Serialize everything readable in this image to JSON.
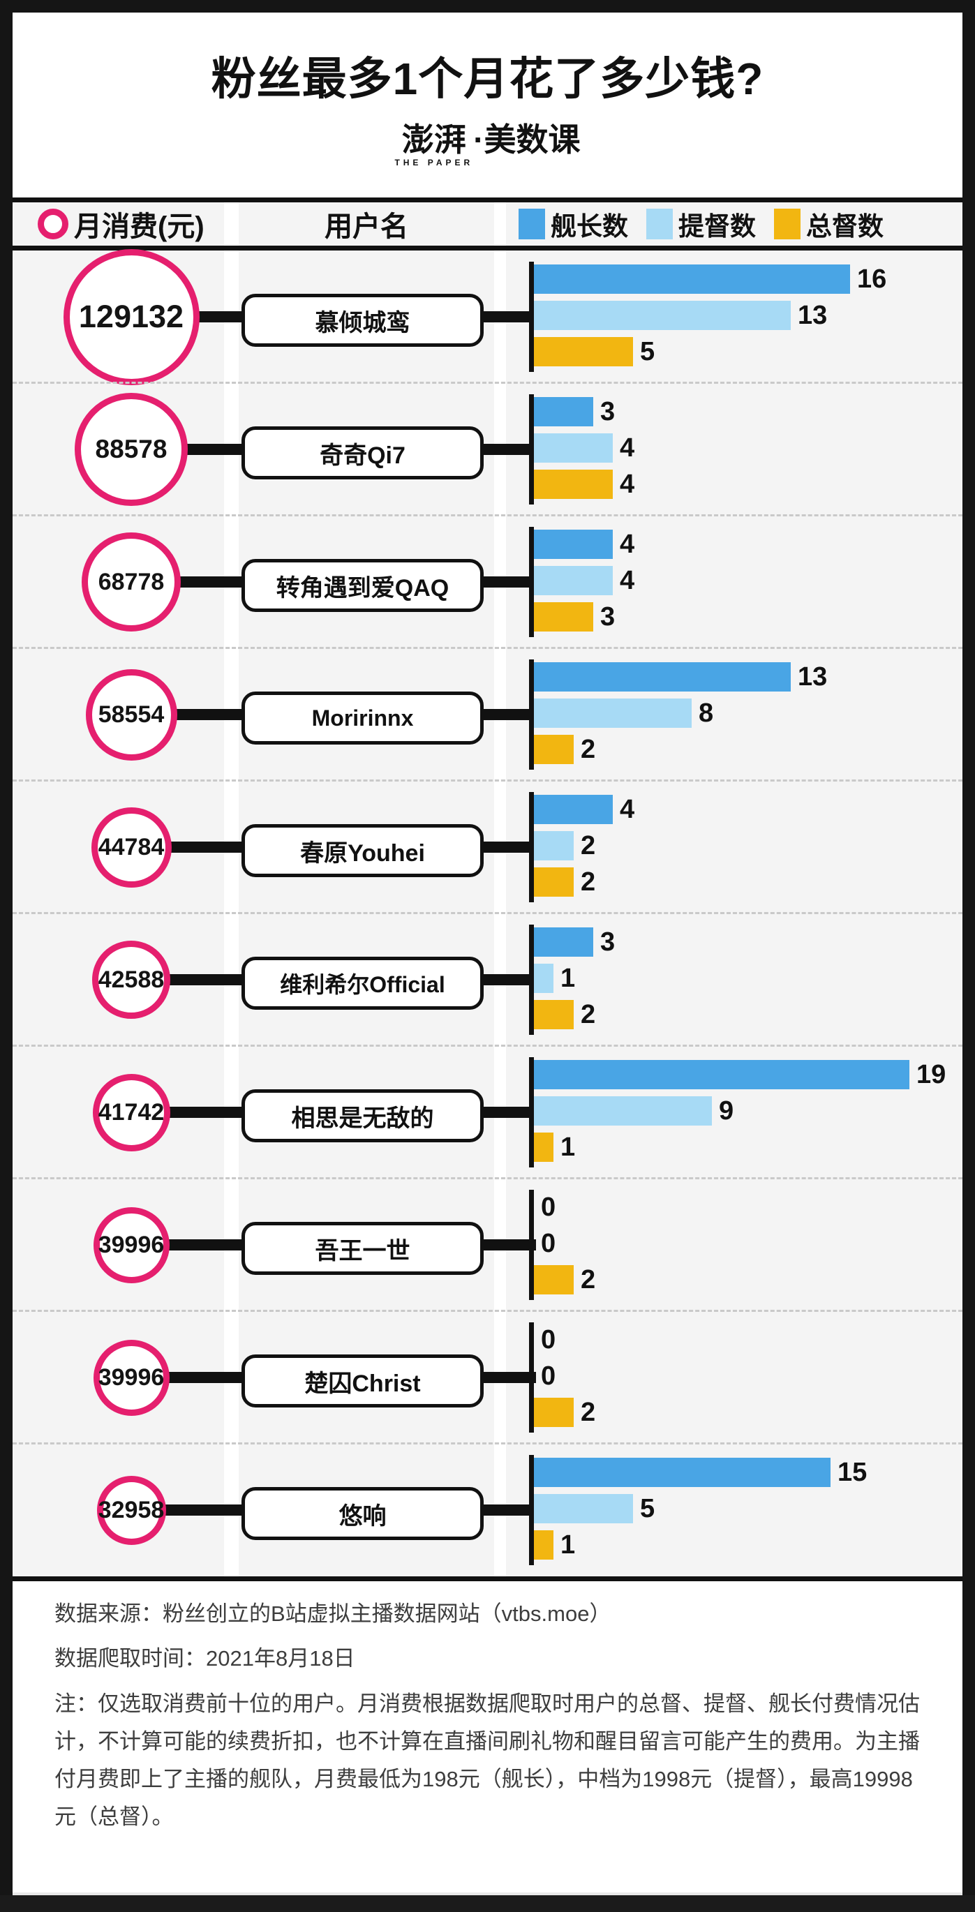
{
  "title": "粉丝最多1个月花了多少钱?",
  "logo": {
    "brand": "澎湃",
    "brand_en": "THE PAPER",
    "suffix": "·美数课"
  },
  "header": {
    "col_spend": "月消费(元)",
    "col_user": "用户名"
  },
  "colors": {
    "accent_pink": "#e51f6e",
    "bar_blue": "#49a5e5",
    "bar_light_blue": "#a7daf5",
    "bar_yellow": "#f2b611"
  },
  "chart_data": {
    "type": "bar",
    "orientation": "horizontal",
    "series_labels": [
      "舰长数",
      "提督数",
      "总督数"
    ],
    "series_colors": [
      "#49a5e5",
      "#a7daf5",
      "#f2b611"
    ],
    "value_range": [
      0,
      19
    ],
    "rows": [
      {
        "monthly_spend_yuan": 129132,
        "username": "慕倾城鸾",
        "values": [
          16,
          13,
          5
        ]
      },
      {
        "monthly_spend_yuan": 88578,
        "username": "奇奇Qi7",
        "values": [
          3,
          4,
          4
        ]
      },
      {
        "monthly_spend_yuan": 68778,
        "username": "转角遇到爱QAQ",
        "values": [
          4,
          4,
          3
        ]
      },
      {
        "monthly_spend_yuan": 58554,
        "username": "Moririnnx",
        "values": [
          13,
          8,
          2
        ]
      },
      {
        "monthly_spend_yuan": 44784,
        "username": "春原Youhei",
        "values": [
          4,
          2,
          2
        ]
      },
      {
        "monthly_spend_yuan": 42588,
        "username": "维利希尔Official",
        "values": [
          3,
          1,
          2
        ]
      },
      {
        "monthly_spend_yuan": 41742,
        "username": "相思是无敌的",
        "values": [
          19,
          9,
          1
        ]
      },
      {
        "monthly_spend_yuan": 39996,
        "username": "吾王一世",
        "values": [
          0,
          0,
          2
        ]
      },
      {
        "monthly_spend_yuan": 39996,
        "username": "楚囚Christ",
        "values": [
          0,
          0,
          2
        ]
      },
      {
        "monthly_spend_yuan": 32958,
        "username": "悠响",
        "values": [
          15,
          5,
          1
        ]
      }
    ]
  },
  "footer": {
    "source_line": "数据来源：粉丝创立的B站虚拟主播数据网站（vtbs.moe）",
    "crawl_line": "数据爬取时间：2021年8月18日",
    "note_line": "注：仅选取消费前十位的用户。月消费根据数据爬取时用户的总督、提督、舰长付费情况估计，不计算可能的续费折扣，也不计算在直播间刷礼物和醒目留言可能产生的费用。为主播付月费即上了主播的舰队，月费最低为198元（舰长），中档为1998元（提督），最高19998元（总督）。"
  }
}
